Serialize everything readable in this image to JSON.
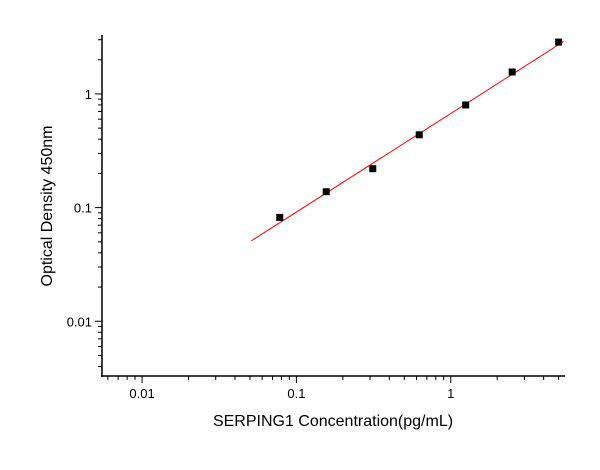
{
  "chart_data": {
    "type": "scatter",
    "title": "",
    "xlabel": "SERPING1 Concentration(pg/mL)",
    "ylabel": "Optical Density 450nm",
    "xscale": "log",
    "yscale": "log",
    "xlim": [
      0.0055,
      5.5
    ],
    "ylim": [
      0.0033,
      3.3
    ],
    "xticks": [
      {
        "v": 0.01,
        "label": "0.01"
      },
      {
        "v": 0.1,
        "label": "0.1"
      },
      {
        "v": 1,
        "label": "1"
      }
    ],
    "yticks": [
      {
        "v": 0.01,
        "label": "0.01"
      },
      {
        "v": 0.1,
        "label": "0.1"
      },
      {
        "v": 1,
        "label": "1"
      }
    ],
    "grid": false,
    "points": {
      "x": [
        0.078,
        0.156,
        0.3125,
        0.625,
        1.25,
        2.5,
        5
      ],
      "y": [
        0.082,
        0.138,
        0.22,
        0.437,
        0.8,
        1.56,
        2.86
      ],
      "color": "#000000",
      "marker": "square"
    },
    "fit_line": {
      "x": [
        0.051,
        5.4
      ],
      "y": [
        0.051,
        2.9
      ],
      "color": "#ff0000"
    }
  }
}
